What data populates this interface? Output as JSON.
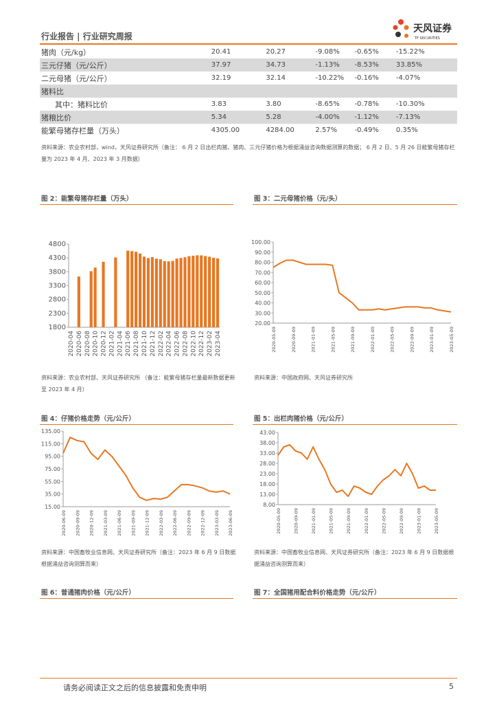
{
  "header": {
    "title": "行业报告 | 行业研究周报",
    "logo": "天风证券",
    "logo_sub": "TF SECURITIES"
  },
  "table": {
    "rows": [
      [
        "猪肉（元/kg）",
        "20.41",
        "20.27",
        "-9.08%",
        "-0.65%",
        "-15.22%"
      ],
      [
        "三元仔猪（元/公斤）",
        "37.97",
        "34.73",
        "-1.13%",
        "-8.53%",
        "33.85%"
      ],
      [
        "二元母猪（元/公斤）",
        "32.19",
        "32.14",
        "-10.22%",
        "-0.16%",
        "-4.07%"
      ],
      [
        "猪料比"
      ],
      [
        "其中：猪料比价",
        "3.83",
        "3.80",
        "-8.65%",
        "-0.78%",
        "-10.30%"
      ],
      [
        "猪粮比价",
        "5.34",
        "5.28",
        "-4.00%",
        "-1.12%",
        "-7.13%"
      ],
      [
        "能繁母猪存栏量（万头）",
        "4305.00",
        "4284.00",
        "2.57%",
        "-0.49%",
        "0.35%"
      ]
    ],
    "source": "资料来源：农业农村部，wind，天风证券研究所（备注： 6 月 2 日出栏肉猪、猪肉、三元仔猪价格为根据涌益咨询数据测算的数据； 6 月 2 日、5 月 26 日能繁母猪存栏量为 2023 年 4 月、2023 年 3 月数据）"
  },
  "figures": [
    {
      "title": "图 2：能繁母猪存栏量（万头）",
      "source": "资料来源：农业农村部、天风证券研究所 （备注：能繁母猪存栏量最新数据更新至 2023 年 4 月）"
    },
    {
      "title": "图 3：二元母猪价格（元/头）",
      "source": "资料来源：中国政府网、天风证券研究所"
    },
    {
      "title": "图 4：仔猪价格走势（元/公斤）",
      "source": "资料来源：中国畜牧业信息网、天风证券研究所（备注：2023 年 6 月 9 日数据根据涌益咨询测算而来）"
    },
    {
      "title": "图 5：出栏肉猪价格（元/公斤）",
      "source": "资料来源：中国畜牧业信息网、天风证券研究所（备注：2023 年 6 月 9 日数据根据涌益咨询测算而来）"
    },
    {
      "title": "图 6：普通猪肉价格（元/公斤）"
    },
    {
      "title": "图 7：全国猪用配合料价格走势（元/公斤）"
    }
  ],
  "chart_data": [
    {
      "type": "bar",
      "color": "#e87722",
      "ylim": [
        1800,
        4800
      ],
      "yticks": [
        1800,
        2300,
        2800,
        3300,
        3800,
        4300,
        4800
      ],
      "categories": [
        "2020-04",
        null,
        "2020-06",
        null,
        "2020-08",
        null,
        "2020-10",
        null,
        "2020-12",
        null,
        "2021-02",
        null,
        "2021-04",
        null,
        "2021-06",
        null,
        "2021-08",
        null,
        "2021-10",
        null,
        "2021-12",
        null,
        "2022-02",
        null,
        "2022-04",
        null,
        "2022-06",
        null,
        "2022-08",
        null,
        "2022-10",
        null,
        "2022-12",
        null,
        "2023-02",
        null,
        "2023-04"
      ],
      "values": [
        null,
        null,
        3629,
        null,
        null,
        3822,
        3950,
        null,
        4161,
        null,
        null,
        4318,
        null,
        null,
        4564,
        4546,
        4520,
        4459,
        4348,
        4296,
        4329,
        4274,
        4250,
        4185,
        4177,
        4192,
        4277,
        4298,
        4324,
        4362,
        4379,
        4394,
        4390,
        4367,
        4343,
        4305,
        4284
      ]
    },
    {
      "type": "line",
      "color": "#e87722",
      "ylim": [
        20,
        100
      ],
      "yticks": [
        {
          "value": 20,
          "label": "20.00"
        },
        {
          "value": 30,
          "label": "30.00"
        },
        {
          "value": 40,
          "label": "40.00"
        },
        {
          "value": 50,
          "label": "50.00"
        },
        {
          "value": 60,
          "label": "60.00"
        },
        {
          "value": 70,
          "label": "70.00"
        },
        {
          "value": 80,
          "label": "80.00"
        },
        {
          "value": 90,
          "label": "90.00"
        },
        {
          "value": 100,
          "label": "100.00"
        }
      ],
      "categories": [
        "2020-05-09",
        null,
        null,
        "2020-09-09",
        null,
        null,
        "2021-01-09",
        null,
        null,
        "2021-05-09",
        null,
        null,
        "2021-09-09",
        null,
        null,
        "2022-01-09",
        null,
        null,
        "2022-05-09",
        null,
        null,
        "2022-09-09",
        null,
        null,
        "2023-01-09",
        null,
        null,
        "2023-05-09"
      ],
      "values": [
        75,
        79,
        82,
        82,
        80,
        78,
        78,
        78,
        78,
        77,
        50,
        45,
        40,
        33,
        33,
        33,
        34,
        33,
        34,
        35,
        36,
        36,
        36,
        35,
        35,
        33,
        32,
        31
      ]
    },
    {
      "type": "line",
      "color": "#e87722",
      "ylim": [
        15,
        135
      ],
      "yticks": [
        {
          "value": 15,
          "label": "15.00"
        },
        {
          "value": 35,
          "label": "35.00"
        },
        {
          "value": 55,
          "label": "55.00"
        },
        {
          "value": 75,
          "label": "75.00"
        },
        {
          "value": 95,
          "label": "95.00"
        },
        {
          "value": 115,
          "label": "115.00"
        },
        {
          "value": 135,
          "label": "135.00"
        }
      ],
      "categories": [
        "2020-06-09",
        null,
        "2020-09-09",
        null,
        "2020-12-09",
        null,
        "2021-03-09",
        null,
        "2021-06-09",
        null,
        "2021-09-09",
        null,
        "2021-12-09",
        null,
        "2022-03-09",
        null,
        "2022-06-09",
        null,
        "2022-09-09",
        null,
        "2022-12-09",
        null,
        "2023-03-09",
        null,
        "2023-06-09"
      ],
      "values": [
        100,
        125,
        120,
        118,
        100,
        90,
        105,
        95,
        80,
        65,
        45,
        30,
        25,
        28,
        27,
        30,
        40,
        50,
        50,
        48,
        45,
        40,
        38,
        40,
        35
      ]
    },
    {
      "type": "line",
      "color": "#e87722",
      "ylim": [
        8,
        43
      ],
      "yticks": [
        {
          "value": 8,
          "label": "8.00"
        },
        {
          "value": 13,
          "label": "13.00"
        },
        {
          "value": 18,
          "label": "18.00"
        },
        {
          "value": 23,
          "label": "23.00"
        },
        {
          "value": 28,
          "label": "28.00"
        },
        {
          "value": 33,
          "label": "33.00"
        },
        {
          "value": 38,
          "label": "38.00"
        },
        {
          "value": 43,
          "label": "43.00"
        }
      ],
      "categories": [
        "2020-05-09",
        null,
        null,
        "2020-09-09",
        null,
        null,
        "2021-01-09",
        null,
        null,
        "2021-05-09",
        null,
        null,
        "2021-09-09",
        null,
        null,
        "2022-01-09",
        null,
        null,
        "2022-05-09",
        null,
        null,
        "2022-09-09",
        null,
        null,
        "2023-01-09",
        null,
        null,
        "2023-05-09"
      ],
      "values": [
        32,
        36,
        37,
        34,
        33,
        30,
        36,
        30,
        25,
        18,
        14,
        15,
        12,
        17,
        16,
        14,
        13,
        17,
        20,
        22,
        25,
        22,
        28,
        23,
        16,
        17,
        15,
        15
      ]
    }
  ],
  "footer": {
    "disclaimer": "请务必阅读正文之后的信息披露和免责申明",
    "page": "5"
  }
}
